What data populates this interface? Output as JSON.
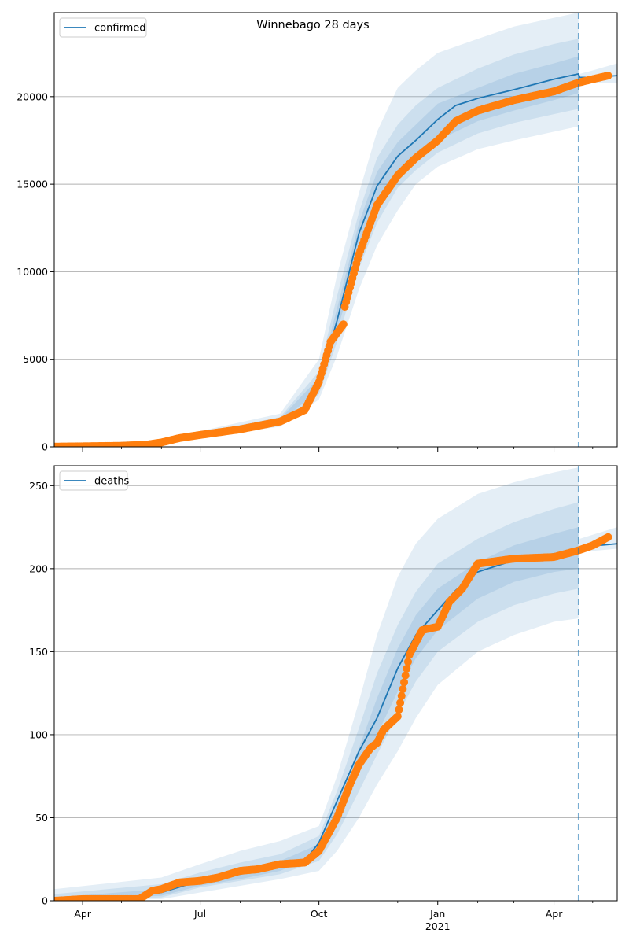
{
  "figure_title": "Winnebago 28 days",
  "colors": {
    "model": "#1f77b4",
    "observed": "#ff7f0e",
    "band": "#1f77b4",
    "grid": "#b0b0b0",
    "vline": "#1f77b4"
  },
  "chart_data": [
    {
      "type": "line",
      "series": [
        {
          "name": "confirmed",
          "kind": "model",
          "x": [
            "2020-03-10",
            "2020-04-01",
            "2020-05-01",
            "2020-06-01",
            "2020-07-01",
            "2020-08-01",
            "2020-09-01",
            "2020-09-20",
            "2020-10-01",
            "2020-10-15",
            "2020-11-01",
            "2020-11-15",
            "2020-12-01",
            "2020-12-15",
            "2021-01-01",
            "2021-01-15",
            "2021-02-01",
            "2021-03-01",
            "2021-04-01",
            "2021-04-20",
            "2021-04-21",
            "2021-05-01",
            "2021-05-20"
          ],
          "values": [
            0,
            20,
            60,
            250,
            700,
            1100,
            1500,
            2100,
            3600,
            7200,
            12200,
            14900,
            16600,
            17500,
            18700,
            19500,
            19900,
            20400,
            21000,
            21300,
            21100,
            21100,
            21200
          ]
        },
        {
          "name": "observed confirmed",
          "kind": "observed",
          "x": [
            "2020-03-10",
            "2020-04-01",
            "2020-05-01",
            "2020-05-20",
            "2020-06-01",
            "2020-06-15",
            "2020-07-01",
            "2020-08-01",
            "2020-09-01",
            "2020-09-20",
            "2020-10-01",
            "2020-10-10",
            "2020-10-20",
            "2020-10-21",
            "2020-11-01",
            "2020-11-15",
            "2020-12-01",
            "2020-12-15",
            "2021-01-01",
            "2021-01-15",
            "2021-02-01",
            "2021-03-01",
            "2021-04-01",
            "2021-04-20",
            "2021-05-01",
            "2021-05-13"
          ],
          "values": [
            10,
            30,
            60,
            120,
            250,
            500,
            680,
            1000,
            1450,
            2100,
            3700,
            6000,
            7000,
            8000,
            11000,
            13800,
            15500,
            16500,
            17500,
            18600,
            19200,
            19800,
            20300,
            20800,
            21000,
            21200
          ]
        }
      ],
      "bands": [
        {
          "x": [
            "2020-03-10",
            "2020-06-01",
            "2020-07-01",
            "2020-08-01",
            "2020-09-01",
            "2020-10-01",
            "2020-10-15",
            "2020-11-01",
            "2020-11-15",
            "2020-12-01",
            "2020-12-15",
            "2021-01-01",
            "2021-02-01",
            "2021-03-01",
            "2021-04-01",
            "2021-04-20"
          ],
          "lower": [
            0,
            150,
            550,
            850,
            1150,
            2700,
            5200,
            9000,
            11500,
            13500,
            15000,
            16000,
            17000,
            17500,
            18000,
            18300
          ],
          "upper": [
            100,
            400,
            900,
            1400,
            1900,
            5000,
            9800,
            14500,
            18000,
            20500,
            21500,
            22500,
            23300,
            24000,
            24500,
            24800
          ]
        },
        {
          "x": [
            "2020-03-10",
            "2020-06-01",
            "2020-07-01",
            "2020-08-01",
            "2020-09-01",
            "2020-10-01",
            "2020-10-15",
            "2020-11-01",
            "2020-11-15",
            "2020-12-01",
            "2020-12-15",
            "2021-01-01",
            "2021-02-01",
            "2021-03-01",
            "2021-04-01",
            "2021-04-20"
          ],
          "lower": [
            0,
            200,
            600,
            950,
            1300,
            3000,
            6000,
            10200,
            12800,
            14800,
            15800,
            16800,
            17900,
            18500,
            19000,
            19300
          ],
          "upper": [
            60,
            330,
            800,
            1250,
            1700,
            4300,
            8600,
            13400,
            16500,
            18400,
            19500,
            20500,
            21600,
            22400,
            23000,
            23300
          ]
        },
        {
          "x": [
            "2020-03-10",
            "2020-06-01",
            "2020-07-01",
            "2020-08-01",
            "2020-09-01",
            "2020-10-01",
            "2020-10-15",
            "2020-11-01",
            "2020-11-15",
            "2020-12-01",
            "2020-12-15",
            "2021-01-01",
            "2021-02-01",
            "2021-03-01",
            "2021-04-01",
            "2021-04-20"
          ],
          "lower": [
            0,
            230,
            650,
            1020,
            1400,
            3250,
            6600,
            11000,
            13700,
            15500,
            16400,
            17500,
            18600,
            19200,
            19800,
            20200
          ],
          "upper": [
            30,
            280,
            750,
            1180,
            1600,
            3950,
            7900,
            12800,
            15700,
            17400,
            18400,
            19600,
            20500,
            21300,
            21900,
            22300
          ]
        },
        {
          "x": [
            "2021-04-21",
            "2021-05-01",
            "2021-05-20"
          ],
          "lower": [
            20900,
            20800,
            20800
          ],
          "upper": [
            21300,
            21500,
            21900
          ]
        }
      ],
      "ylim": [
        0,
        24800
      ],
      "yticks": [
        0,
        5000,
        10000,
        15000,
        20000
      ],
      "ytick_labels": [
        "0",
        "5000",
        "10000",
        "15000",
        "20000"
      ],
      "grid": "y",
      "legend": {
        "position": "top-left",
        "label": "confirmed"
      },
      "vline": "2021-04-20"
    },
    {
      "type": "line",
      "series": [
        {
          "name": "deaths",
          "kind": "model",
          "x": [
            "2020-03-10",
            "2020-05-01",
            "2020-06-01",
            "2020-07-01",
            "2020-08-01",
            "2020-09-01",
            "2020-09-20",
            "2020-10-01",
            "2020-10-15",
            "2020-11-01",
            "2020-11-15",
            "2020-12-01",
            "2020-12-15",
            "2021-01-01",
            "2021-01-15",
            "2021-02-01",
            "2021-03-01",
            "2021-04-01",
            "2021-04-20",
            "2021-04-21",
            "2021-05-20"
          ],
          "values": [
            0,
            1,
            5,
            12,
            16,
            21,
            24,
            35,
            60,
            90,
            110,
            140,
            160,
            175,
            187,
            198,
            205,
            209,
            211,
            213,
            215
          ]
        },
        {
          "name": "observed deaths",
          "kind": "observed",
          "x": [
            "2020-03-10",
            "2020-04-01",
            "2020-05-15",
            "2020-05-25",
            "2020-06-01",
            "2020-06-15",
            "2020-07-01",
            "2020-07-15",
            "2020-08-01",
            "2020-08-15",
            "2020-09-01",
            "2020-09-20",
            "2020-10-01",
            "2020-10-15",
            "2020-10-25",
            "2020-11-01",
            "2020-11-10",
            "2020-11-15",
            "2020-11-20",
            "2020-12-01",
            "2020-12-10",
            "2020-12-20",
            "2021-01-01",
            "2021-01-10",
            "2021-01-20",
            "2021-02-01",
            "2021-03-01",
            "2021-04-01",
            "2021-04-20",
            "2021-05-01",
            "2021-05-13"
          ],
          "values": [
            0,
            1,
            1,
            6,
            7,
            11,
            12,
            14,
            18,
            19,
            22,
            23,
            30,
            50,
            70,
            82,
            92,
            95,
            103,
            111,
            148,
            163,
            165,
            180,
            188,
            203,
            206,
            207,
            211,
            214,
            219
          ]
        }
      ],
      "bands": [
        {
          "x": [
            "2020-03-10",
            "2020-06-01",
            "2020-07-01",
            "2020-08-01",
            "2020-09-01",
            "2020-10-01",
            "2020-10-15",
            "2020-11-01",
            "2020-11-15",
            "2020-12-01",
            "2020-12-15",
            "2021-01-01",
            "2021-02-01",
            "2021-03-01",
            "2021-04-01",
            "2021-04-20"
          ],
          "lower": [
            0,
            1,
            5,
            9,
            13,
            18,
            30,
            50,
            70,
            90,
            110,
            130,
            150,
            160,
            168,
            170
          ],
          "upper": [
            7,
            14,
            22,
            30,
            36,
            45,
            75,
            120,
            160,
            195,
            215,
            230,
            245,
            252,
            258,
            261
          ]
        },
        {
          "x": [
            "2020-03-10",
            "2020-06-01",
            "2020-07-01",
            "2020-08-01",
            "2020-09-01",
            "2020-10-01",
            "2020-10-15",
            "2020-11-01",
            "2020-11-15",
            "2020-12-01",
            "2020-12-15",
            "2021-01-01",
            "2021-02-01",
            "2021-03-01",
            "2021-04-01",
            "2021-04-20"
          ],
          "lower": [
            0,
            2,
            8,
            12,
            16,
            24,
            40,
            66,
            88,
            112,
            132,
            150,
            168,
            178,
            185,
            188
          ],
          "upper": [
            4,
            10,
            17,
            23,
            28,
            39,
            66,
            104,
            137,
            166,
            186,
            203,
            218,
            228,
            236,
            240
          ]
        },
        {
          "x": [
            "2020-03-10",
            "2020-06-01",
            "2020-07-01",
            "2020-08-01",
            "2020-09-01",
            "2020-10-01",
            "2020-10-15",
            "2020-11-01",
            "2020-11-15",
            "2020-12-01",
            "2020-12-15",
            "2021-01-01",
            "2021-02-01",
            "2021-03-01",
            "2021-04-01",
            "2021-04-20"
          ],
          "lower": [
            0,
            3,
            9,
            13,
            18,
            28,
            48,
            78,
            100,
            126,
            146,
            163,
            182,
            192,
            198,
            200
          ],
          "upper": [
            2,
            7,
            14,
            19,
            24,
            34,
            58,
            92,
            122,
            152,
            172,
            188,
            204,
            214,
            221,
            225
          ]
        },
        {
          "x": [
            "2021-04-21",
            "2021-05-20"
          ],
          "lower": [
            210,
            212
          ],
          "upper": [
            218,
            225
          ]
        }
      ],
      "ylim": [
        0,
        262
      ],
      "yticks": [
        0,
        50,
        100,
        150,
        200,
        250
      ],
      "ytick_labels": [
        "0",
        "50",
        "100",
        "150",
        "200",
        "250"
      ],
      "grid": "y",
      "legend": {
        "position": "top-left",
        "label": "deaths"
      },
      "vline": "2021-04-20"
    }
  ],
  "x_axis": {
    "range": [
      "2020-03-10",
      "2021-05-20"
    ],
    "major_ticks": [
      "2020-04-01",
      "2020-07-01",
      "2020-10-01",
      "2021-01-01",
      "2021-04-01"
    ],
    "major_labels": [
      "Apr",
      "Jul",
      "Oct",
      "Jan",
      "Apr"
    ],
    "year_label": "2021",
    "year_label_at": "2021-01-01",
    "minor_ticks": [
      "2020-05-01",
      "2020-06-01",
      "2020-08-01",
      "2020-09-01",
      "2020-11-01",
      "2020-12-01",
      "2021-02-01",
      "2021-03-01",
      "2021-05-01"
    ]
  }
}
